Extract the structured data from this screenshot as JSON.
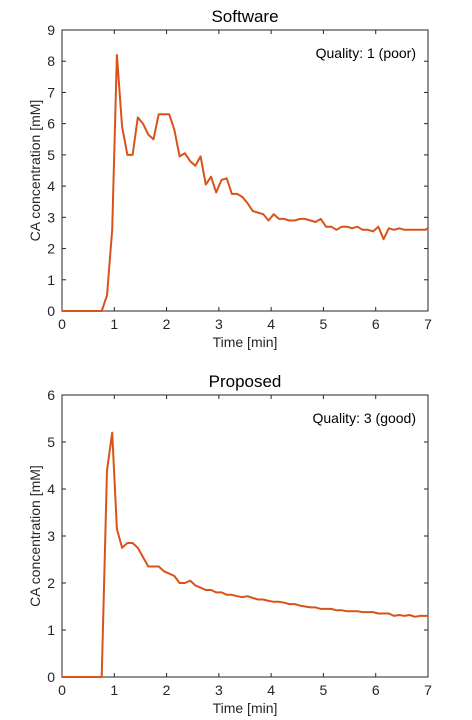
{
  "chart_data": [
    {
      "type": "line",
      "title": "Software",
      "xlabel": "Time [min]",
      "ylabel": "CA concentration [mM]",
      "annotation": "Quality: 1 (poor)",
      "xlim": [
        0,
        7
      ],
      "ylim": [
        0,
        9
      ],
      "xticks": [
        "0",
        "1",
        "2",
        "3",
        "4",
        "5",
        "6",
        "7"
      ],
      "yticks": [
        "0",
        "1",
        "2",
        "3",
        "4",
        "5",
        "6",
        "7",
        "8",
        "9"
      ],
      "grid": false,
      "color": "#D95319",
      "x": [
        0,
        0.76,
        0.86,
        0.96,
        1.05,
        1.15,
        1.25,
        1.35,
        1.45,
        1.55,
        1.65,
        1.75,
        1.85,
        1.95,
        2.05,
        2.15,
        2.25,
        2.35,
        2.45,
        2.55,
        2.65,
        2.75,
        2.85,
        2.95,
        3.05,
        3.15,
        3.25,
        3.35,
        3.45,
        3.55,
        3.65,
        3.75,
        3.85,
        3.95,
        4.05,
        4.15,
        4.25,
        4.35,
        4.45,
        4.55,
        4.65,
        4.75,
        4.85,
        4.95,
        5.05,
        5.15,
        5.25,
        5.35,
        5.45,
        5.55,
        5.65,
        5.75,
        5.85,
        5.95,
        6.05,
        6.15,
        6.25,
        6.35,
        6.45,
        6.55,
        6.65,
        6.75,
        6.85,
        6.95,
        7.0
      ],
      "y": [
        0,
        0,
        0.5,
        2.6,
        8.2,
        5.9,
        5.0,
        5.0,
        6.2,
        6.0,
        5.65,
        5.5,
        6.3,
        6.3,
        6.3,
        5.8,
        4.95,
        5.05,
        4.8,
        4.65,
        4.95,
        4.05,
        4.3,
        3.8,
        4.2,
        4.25,
        3.75,
        3.75,
        3.65,
        3.45,
        3.2,
        3.15,
        3.1,
        2.9,
        3.1,
        2.95,
        2.95,
        2.9,
        2.9,
        2.95,
        2.95,
        2.9,
        2.85,
        2.95,
        2.7,
        2.7,
        2.6,
        2.7,
        2.7,
        2.65,
        2.7,
        2.6,
        2.6,
        2.55,
        2.7,
        2.3,
        2.65,
        2.6,
        2.65,
        2.6,
        2.6,
        2.6,
        2.6,
        2.6,
        2.65
      ]
    },
    {
      "type": "line",
      "title": "Proposed",
      "xlabel": "Time [min]",
      "ylabel": "CA concentration [mM]",
      "annotation": "Quality: 3 (good)",
      "xlim": [
        0,
        7
      ],
      "ylim": [
        0,
        6
      ],
      "xticks": [
        "0",
        "1",
        "2",
        "3",
        "4",
        "5",
        "6",
        "7"
      ],
      "yticks": [
        "0",
        "1",
        "2",
        "3",
        "4",
        "5",
        "6"
      ],
      "grid": false,
      "color": "#D95319",
      "x": [
        0,
        0.76,
        0.86,
        0.96,
        1.05,
        1.15,
        1.25,
        1.35,
        1.45,
        1.55,
        1.65,
        1.75,
        1.85,
        1.95,
        2.05,
        2.15,
        2.25,
        2.35,
        2.45,
        2.55,
        2.65,
        2.75,
        2.85,
        2.95,
        3.05,
        3.15,
        3.25,
        3.35,
        3.45,
        3.55,
        3.65,
        3.75,
        3.85,
        3.95,
        4.05,
        4.15,
        4.25,
        4.35,
        4.45,
        4.55,
        4.65,
        4.75,
        4.85,
        4.95,
        5.05,
        5.15,
        5.25,
        5.35,
        5.45,
        5.55,
        5.65,
        5.75,
        5.85,
        5.95,
        6.05,
        6.15,
        6.25,
        6.35,
        6.45,
        6.55,
        6.65,
        6.75,
        6.85,
        6.95,
        7.0
      ],
      "y": [
        0,
        0,
        4.4,
        5.2,
        3.15,
        2.75,
        2.85,
        2.85,
        2.75,
        2.55,
        2.35,
        2.35,
        2.35,
        2.25,
        2.2,
        2.15,
        2.0,
        2.0,
        2.05,
        1.95,
        1.9,
        1.85,
        1.85,
        1.8,
        1.8,
        1.75,
        1.75,
        1.72,
        1.7,
        1.72,
        1.68,
        1.65,
        1.65,
        1.62,
        1.6,
        1.6,
        1.58,
        1.55,
        1.55,
        1.52,
        1.5,
        1.48,
        1.48,
        1.45,
        1.45,
        1.45,
        1.42,
        1.42,
        1.4,
        1.4,
        1.4,
        1.38,
        1.38,
        1.38,
        1.35,
        1.35,
        1.35,
        1.3,
        1.32,
        1.3,
        1.32,
        1.28,
        1.3,
        1.3,
        1.3
      ]
    }
  ]
}
